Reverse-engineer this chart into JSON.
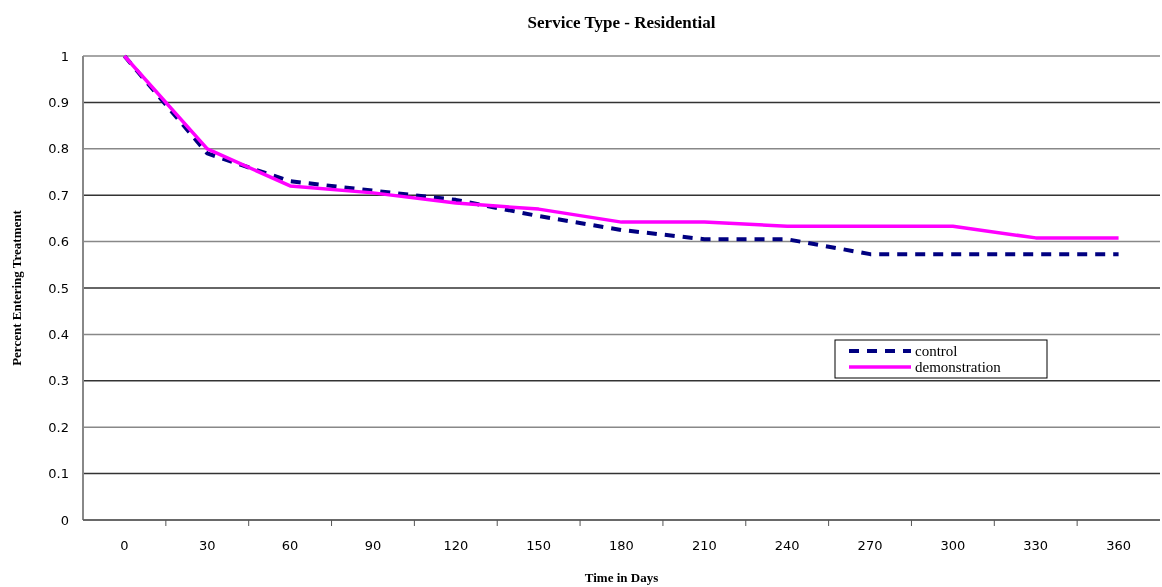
{
  "chart_data": {
    "type": "line",
    "title": "Service Type - Residential",
    "xlabel": "Time in Days",
    "ylabel": "Percent Entering Treatment",
    "categories": [
      "0",
      "30",
      "60",
      "90",
      "120",
      "150",
      "180",
      "210",
      "240",
      "270",
      "300",
      "330",
      "360"
    ],
    "series": [
      {
        "name": "control",
        "color": "#000080",
        "line_style": "dashed",
        "values": [
          1,
          0.79,
          0.73,
          0.71,
          0.69,
          0.655,
          0.625,
          0.605,
          0.605,
          0.573,
          0.573,
          0.573,
          0.573
        ]
      },
      {
        "name": "demonstration",
        "color": "#ff00ff",
        "line_style": "solid",
        "values": [
          1,
          0.8,
          0.72,
          0.705,
          0.683,
          0.67,
          0.642,
          0.642,
          0.633,
          0.633,
          0.633,
          0.608,
          0.608
        ]
      }
    ],
    "ylim": [
      0,
      1
    ],
    "yticks": [
      0,
      0.1,
      0.2,
      0.3,
      0.4,
      0.5,
      0.6,
      0.7,
      0.8,
      0.9,
      1
    ],
    "grid": "y",
    "legend": "right",
    "marker": "none"
  }
}
